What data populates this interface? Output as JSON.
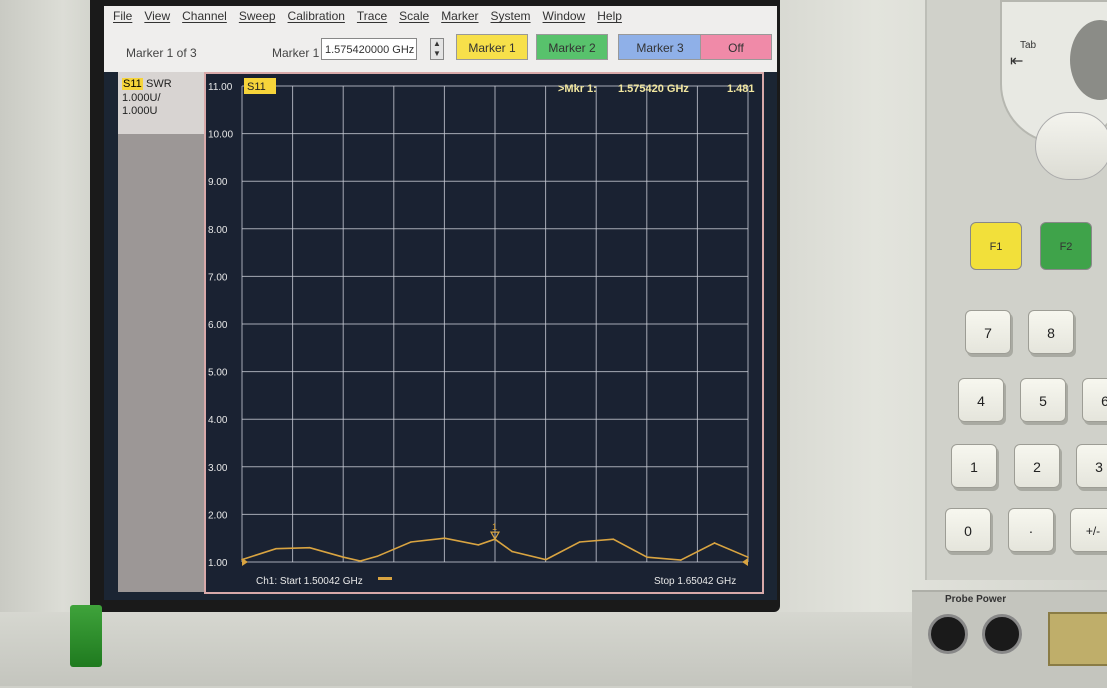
{
  "menu": [
    "File",
    "View",
    "Channel",
    "Sweep",
    "Calibration",
    "Trace",
    "Scale",
    "Marker",
    "System",
    "Window",
    "Help"
  ],
  "toolbar": {
    "marker_status": "Marker 1 of 3",
    "marker_field_label": "Marker 1",
    "marker_value": "1.575420000 GHz",
    "buttons": [
      {
        "label": "Marker 1",
        "color": "#f7e04a"
      },
      {
        "label": "Marker 2",
        "color": "#58c26c"
      },
      {
        "label": "Marker 3",
        "color": "#8fb0e8"
      },
      {
        "label": "Off",
        "color": "#f08aa8"
      }
    ]
  },
  "trace_info": {
    "tag": "S11",
    "format": "SWR",
    "scale": "1.000U/",
    "ref": "1.000U"
  },
  "plot": {
    "trace_tag": "S11",
    "marker_readout": {
      "label": ">Mkr  1:",
      "freq": "1.575420 GHz",
      "value": "1.481"
    },
    "start_label": "Ch1: Start  1.50042 GHz",
    "stop_label": "Stop  1.65042 GHz",
    "colors": {
      "grid": "#c9ccd6",
      "trace": "#d9a441",
      "tag_bg": "#f6d43a",
      "bg": "#1a2232",
      "text": "#e8e8e8"
    }
  },
  "chart_data": {
    "type": "line",
    "xlabel": "",
    "ylabel": "",
    "xlim": [
      1.50042,
      1.65042
    ],
    "ylim": [
      1.0,
      11.0
    ],
    "y_ticks": [
      "11.00",
      "10.00",
      "9.00",
      "8.00",
      "7.00",
      "6.00",
      "5.00",
      "4.00",
      "3.00",
      "2.00",
      "1.00"
    ],
    "grid": true,
    "series": [
      {
        "name": "S11",
        "x": [
          1.50042,
          1.5105,
          1.5205,
          1.5305,
          1.5355,
          1.5405,
          1.5505,
          1.5605,
          1.5705,
          1.5754,
          1.5805,
          1.5905,
          1.6005,
          1.6105,
          1.6205,
          1.6305,
          1.6405,
          1.65042
        ],
        "y": [
          1.05,
          1.28,
          1.3,
          1.1,
          1.02,
          1.12,
          1.42,
          1.5,
          1.36,
          1.48,
          1.22,
          1.05,
          1.42,
          1.48,
          1.1,
          1.04,
          1.4,
          1.1
        ]
      }
    ]
  },
  "keypad": {
    "f_keys": [
      "F1",
      "F2"
    ],
    "tab_key": "Tab",
    "keys": [
      "7",
      "8",
      "4",
      "5",
      "6",
      "1",
      "2",
      "3",
      "0",
      "·",
      "+/-"
    ],
    "probe_label": "Probe Power"
  }
}
